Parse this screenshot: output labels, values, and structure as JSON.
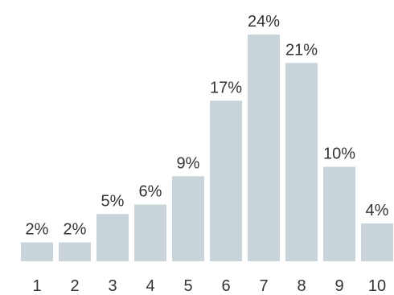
{
  "chart_data": {
    "type": "bar",
    "title": "",
    "xlabel": "",
    "ylabel": "",
    "categories": [
      "1",
      "2",
      "3",
      "4",
      "5",
      "6",
      "7",
      "8",
      "9",
      "10"
    ],
    "values": [
      2,
      2,
      5,
      6,
      9,
      17,
      24,
      21,
      10,
      4
    ],
    "data_labels": [
      "2%",
      "2%",
      "5%",
      "6%",
      "9%",
      "17%",
      "24%",
      "21%",
      "10%",
      "4%"
    ],
    "ylim": [
      0,
      24
    ],
    "grid": false,
    "legend": "none",
    "bar_color": "#c8d4da",
    "text_color": "#333333"
  }
}
